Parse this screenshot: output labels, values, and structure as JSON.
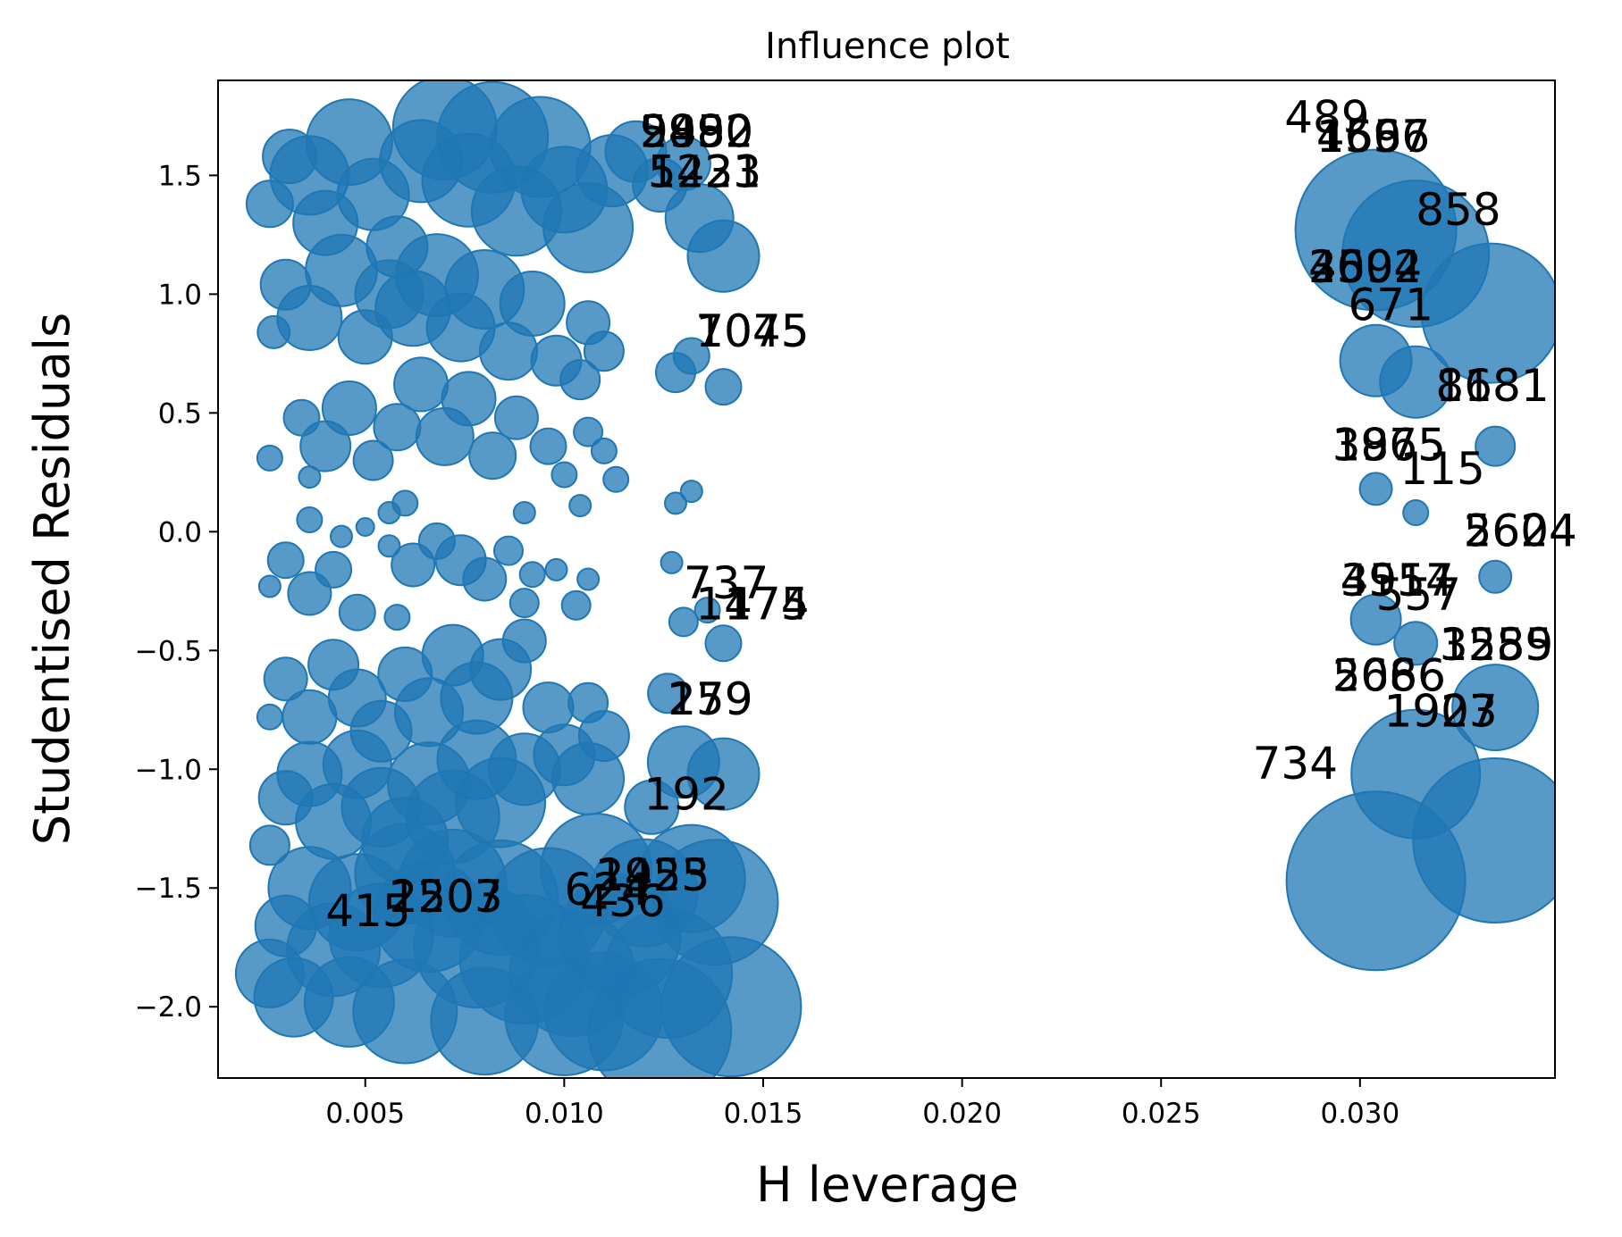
{
  "chart_data": {
    "type": "scatter",
    "title": "Influence plot",
    "xlabel": "H leverage",
    "ylabel": "Studentised Residuals",
    "xlim": [
      0.0013,
      0.0349
    ],
    "ylim": [
      -2.3,
      1.9
    ],
    "xticks": [
      0.005,
      0.01,
      0.015,
      0.02,
      0.025,
      0.03
    ],
    "xtick_labels": [
      "0.005",
      "0.010",
      "0.015",
      "0.020",
      "0.025",
      "0.030"
    ],
    "yticks": [
      1.5,
      1.0,
      0.5,
      0.0,
      -0.5,
      -1.0,
      -1.5,
      -2.0
    ],
    "ytick_labels": [
      "1.5",
      "1.0",
      "0.5",
      "0.0",
      "−0.5",
      "−1.0",
      "−1.5",
      "−2.0"
    ],
    "grid": false,
    "legend": "none",
    "marker_color": "#1f77b4",
    "marker_note": "marker area proportional to influence (Cook's distance)",
    "points": [
      {
        "x": 0.0026,
        "y": 1.38,
        "s": 26
      },
      {
        "x": 0.0031,
        "y": 1.58,
        "s": 30
      },
      {
        "x": 0.0036,
        "y": 1.5,
        "s": 44
      },
      {
        "x": 0.004,
        "y": 1.3,
        "s": 36
      },
      {
        "x": 0.0046,
        "y": 1.64,
        "s": 48
      },
      {
        "x": 0.0052,
        "y": 1.42,
        "s": 40
      },
      {
        "x": 0.0058,
        "y": 1.2,
        "s": 34
      },
      {
        "x": 0.0064,
        "y": 1.56,
        "s": 46
      },
      {
        "x": 0.007,
        "y": 1.7,
        "s": 58
      },
      {
        "x": 0.0076,
        "y": 1.48,
        "s": 52
      },
      {
        "x": 0.0082,
        "y": 1.66,
        "s": 62
      },
      {
        "x": 0.0088,
        "y": 1.35,
        "s": 50
      },
      {
        "x": 0.0094,
        "y": 1.62,
        "s": 56
      },
      {
        "x": 0.01,
        "y": 1.44,
        "s": 48
      },
      {
        "x": 0.0106,
        "y": 1.28,
        "s": 50
      },
      {
        "x": 0.0112,
        "y": 1.52,
        "s": 40
      },
      {
        "x": 0.0118,
        "y": 1.6,
        "s": 34
      },
      {
        "x": 0.0124,
        "y": 1.46,
        "s": 30
      },
      {
        "x": 0.013,
        "y": 1.55,
        "s": 30
      },
      {
        "x": 0.0134,
        "y": 1.32,
        "s": 38
      },
      {
        "x": 0.014,
        "y": 1.16,
        "s": 40
      },
      {
        "x": 0.003,
        "y": 1.04,
        "s": 28
      },
      {
        "x": 0.0036,
        "y": 0.9,
        "s": 36
      },
      {
        "x": 0.0044,
        "y": 1.1,
        "s": 40
      },
      {
        "x": 0.005,
        "y": 0.82,
        "s": 30
      },
      {
        "x": 0.0056,
        "y": 1.0,
        "s": 38
      },
      {
        "x": 0.0062,
        "y": 0.94,
        "s": 42
      },
      {
        "x": 0.0068,
        "y": 1.08,
        "s": 46
      },
      {
        "x": 0.0074,
        "y": 0.86,
        "s": 38
      },
      {
        "x": 0.008,
        "y": 1.02,
        "s": 44
      },
      {
        "x": 0.0086,
        "y": 0.76,
        "s": 32
      },
      {
        "x": 0.0092,
        "y": 0.96,
        "s": 36
      },
      {
        "x": 0.0098,
        "y": 0.72,
        "s": 28
      },
      {
        "x": 0.0106,
        "y": 0.88,
        "s": 24
      },
      {
        "x": 0.011,
        "y": 0.76,
        "s": 22
      },
      {
        "x": 0.0027,
        "y": 0.84,
        "s": 18
      },
      {
        "x": 0.0128,
        "y": 0.67,
        "s": 22
      },
      {
        "x": 0.0132,
        "y": 0.74,
        "s": 20
      },
      {
        "x": 0.014,
        "y": 0.61,
        "s": 20
      },
      {
        "x": 0.0034,
        "y": 0.48,
        "s": 20
      },
      {
        "x": 0.004,
        "y": 0.36,
        "s": 28
      },
      {
        "x": 0.0046,
        "y": 0.52,
        "s": 30
      },
      {
        "x": 0.0052,
        "y": 0.3,
        "s": 22
      },
      {
        "x": 0.0058,
        "y": 0.44,
        "s": 26
      },
      {
        "x": 0.0064,
        "y": 0.62,
        "s": 30
      },
      {
        "x": 0.007,
        "y": 0.4,
        "s": 32
      },
      {
        "x": 0.0076,
        "y": 0.56,
        "s": 30
      },
      {
        "x": 0.0082,
        "y": 0.32,
        "s": 26
      },
      {
        "x": 0.0088,
        "y": 0.48,
        "s": 24
      },
      {
        "x": 0.0096,
        "y": 0.36,
        "s": 20
      },
      {
        "x": 0.0104,
        "y": 0.64,
        "s": 22
      },
      {
        "x": 0.0106,
        "y": 0.42,
        "s": 16
      },
      {
        "x": 0.011,
        "y": 0.34,
        "s": 14
      },
      {
        "x": 0.01,
        "y": 0.24,
        "s": 14
      },
      {
        "x": 0.0113,
        "y": 0.22,
        "s": 14
      },
      {
        "x": 0.0026,
        "y": 0.31,
        "s": 14
      },
      {
        "x": 0.0036,
        "y": 0.23,
        "s": 12
      },
      {
        "x": 0.0128,
        "y": 0.12,
        "s": 12
      },
      {
        "x": 0.0132,
        "y": 0.17,
        "s": 12
      },
      {
        "x": 0.0104,
        "y": 0.11,
        "s": 12
      },
      {
        "x": 0.0056,
        "y": 0.08,
        "s": 12
      },
      {
        "x": 0.006,
        "y": 0.12,
        "s": 14
      },
      {
        "x": 0.009,
        "y": 0.08,
        "s": 12
      },
      {
        "x": 0.0036,
        "y": 0.05,
        "s": 14
      },
      {
        "x": 0.0044,
        "y": -0.02,
        "s": 12
      },
      {
        "x": 0.005,
        "y": 0.02,
        "s": 10
      },
      {
        "x": 0.0056,
        "y": -0.06,
        "s": 12
      },
      {
        "x": 0.0062,
        "y": -0.14,
        "s": 24
      },
      {
        "x": 0.0068,
        "y": -0.04,
        "s": 20
      },
      {
        "x": 0.0074,
        "y": -0.12,
        "s": 28
      },
      {
        "x": 0.008,
        "y": -0.2,
        "s": 24
      },
      {
        "x": 0.0086,
        "y": -0.08,
        "s": 16
      },
      {
        "x": 0.0092,
        "y": -0.18,
        "s": 14
      },
      {
        "x": 0.0098,
        "y": -0.16,
        "s": 12
      },
      {
        "x": 0.0106,
        "y": -0.2,
        "s": 12
      },
      {
        "x": 0.003,
        "y": -0.12,
        "s": 20
      },
      {
        "x": 0.0036,
        "y": -0.26,
        "s": 24
      },
      {
        "x": 0.0042,
        "y": -0.16,
        "s": 20
      },
      {
        "x": 0.0048,
        "y": -0.34,
        "s": 20
      },
      {
        "x": 0.0026,
        "y": -0.23,
        "s": 12
      },
      {
        "x": 0.0127,
        "y": -0.13,
        "s": 12
      },
      {
        "x": 0.0103,
        "y": -0.31,
        "s": 16
      },
      {
        "x": 0.009,
        "y": -0.3,
        "s": 16
      },
      {
        "x": 0.0058,
        "y": -0.36,
        "s": 14
      },
      {
        "x": 0.003,
        "y": -0.62,
        "s": 24
      },
      {
        "x": 0.0036,
        "y": -0.78,
        "s": 30
      },
      {
        "x": 0.0042,
        "y": -0.56,
        "s": 28
      },
      {
        "x": 0.0048,
        "y": -0.7,
        "s": 32
      },
      {
        "x": 0.0054,
        "y": -0.84,
        "s": 34
      },
      {
        "x": 0.006,
        "y": -0.6,
        "s": 30
      },
      {
        "x": 0.0066,
        "y": -0.76,
        "s": 38
      },
      {
        "x": 0.0072,
        "y": -0.52,
        "s": 34
      },
      {
        "x": 0.0078,
        "y": -0.7,
        "s": 40
      },
      {
        "x": 0.0084,
        "y": -0.58,
        "s": 34
      },
      {
        "x": 0.009,
        "y": -0.46,
        "s": 24
      },
      {
        "x": 0.0096,
        "y": -0.74,
        "s": 28
      },
      {
        "x": 0.0026,
        "y": -0.78,
        "s": 14
      },
      {
        "x": 0.0106,
        "y": -0.72,
        "s": 22
      },
      {
        "x": 0.011,
        "y": -0.86,
        "s": 28
      },
      {
        "x": 0.0126,
        "y": -0.68,
        "s": 22
      },
      {
        "x": 0.013,
        "y": -0.38,
        "s": 16
      },
      {
        "x": 0.0136,
        "y": -0.33,
        "s": 14
      },
      {
        "x": 0.014,
        "y": -0.47,
        "s": 20
      },
      {
        "x": 0.003,
        "y": -1.12,
        "s": 30
      },
      {
        "x": 0.0036,
        "y": -1.02,
        "s": 36
      },
      {
        "x": 0.0042,
        "y": -1.22,
        "s": 42
      },
      {
        "x": 0.0048,
        "y": -0.98,
        "s": 38
      },
      {
        "x": 0.0054,
        "y": -1.16,
        "s": 44
      },
      {
        "x": 0.006,
        "y": -1.3,
        "s": 48
      },
      {
        "x": 0.0066,
        "y": -1.06,
        "s": 46
      },
      {
        "x": 0.0072,
        "y": -1.2,
        "s": 52
      },
      {
        "x": 0.0078,
        "y": -0.96,
        "s": 44
      },
      {
        "x": 0.0084,
        "y": -1.14,
        "s": 50
      },
      {
        "x": 0.009,
        "y": -1.0,
        "s": 40
      },
      {
        "x": 0.01,
        "y": -0.94,
        "s": 34
      },
      {
        "x": 0.0106,
        "y": -1.04,
        "s": 40
      },
      {
        "x": 0.0122,
        "y": -1.16,
        "s": 30
      },
      {
        "x": 0.013,
        "y": -0.97,
        "s": 40
      },
      {
        "x": 0.014,
        "y": -1.02,
        "s": 40
      },
      {
        "x": 0.0026,
        "y": -1.32,
        "s": 22
      },
      {
        "x": 0.003,
        "y": -1.66,
        "s": 34
      },
      {
        "x": 0.0036,
        "y": -1.5,
        "s": 46
      },
      {
        "x": 0.0042,
        "y": -1.76,
        "s": 52
      },
      {
        "x": 0.0048,
        "y": -1.56,
        "s": 54
      },
      {
        "x": 0.0054,
        "y": -1.7,
        "s": 58
      },
      {
        "x": 0.006,
        "y": -1.44,
        "s": 56
      },
      {
        "x": 0.0066,
        "y": -1.62,
        "s": 62
      },
      {
        "x": 0.0072,
        "y": -1.48,
        "s": 60
      },
      {
        "x": 0.0078,
        "y": -1.74,
        "s": 70
      },
      {
        "x": 0.0084,
        "y": -1.54,
        "s": 64
      },
      {
        "x": 0.009,
        "y": -1.8,
        "s": 72
      },
      {
        "x": 0.0096,
        "y": -1.58,
        "s": 66
      },
      {
        "x": 0.0102,
        "y": -1.86,
        "s": 70
      },
      {
        "x": 0.0108,
        "y": -1.42,
        "s": 62
      },
      {
        "x": 0.0114,
        "y": -1.7,
        "s": 68
      },
      {
        "x": 0.012,
        "y": -1.52,
        "s": 60
      },
      {
        "x": 0.0126,
        "y": -1.86,
        "s": 72
      },
      {
        "x": 0.0132,
        "y": -1.46,
        "s": 60
      },
      {
        "x": 0.0138,
        "y": -1.56,
        "s": 70
      },
      {
        "x": 0.0142,
        "y": -2.0,
        "s": 78
      },
      {
        "x": 0.0124,
        "y": -2.1,
        "s": 80
      },
      {
        "x": 0.011,
        "y": -2.02,
        "s": 66
      },
      {
        "x": 0.0032,
        "y": -1.96,
        "s": 44
      },
      {
        "x": 0.0026,
        "y": -1.86,
        "s": 38
      },
      {
        "x": 0.0046,
        "y": -1.98,
        "s": 50
      },
      {
        "x": 0.006,
        "y": -2.02,
        "s": 58
      },
      {
        "x": 0.008,
        "y": -2.06,
        "s": 60
      },
      {
        "x": 0.01,
        "y": -2.04,
        "s": 66
      },
      {
        "x": 0.0304,
        "y": 1.27,
        "s": 90
      },
      {
        "x": 0.0314,
        "y": 1.17,
        "s": 82
      },
      {
        "x": 0.0333,
        "y": 0.92,
        "s": 78
      },
      {
        "x": 0.0304,
        "y": 0.72,
        "s": 40
      },
      {
        "x": 0.0314,
        "y": 0.63,
        "s": 40
      },
      {
        "x": 0.0334,
        "y": 0.36,
        "s": 22
      },
      {
        "x": 0.0304,
        "y": 0.18,
        "s": 18
      },
      {
        "x": 0.0314,
        "y": 0.08,
        "s": 14
      },
      {
        "x": 0.0334,
        "y": -0.19,
        "s": 18
      },
      {
        "x": 0.0304,
        "y": -0.37,
        "s": 28
      },
      {
        "x": 0.0314,
        "y": -0.47,
        "s": 24
      },
      {
        "x": 0.0334,
        "y": -0.74,
        "s": 48
      },
      {
        "x": 0.0314,
        "y": -1.02,
        "s": 72
      },
      {
        "x": 0.0304,
        "y": -1.47,
        "s": 100
      },
      {
        "x": 0.0334,
        "y": -1.3,
        "s": 92
      }
    ],
    "annotations": [
      {
        "text": "489",
        "x": 0.0281,
        "y": 1.68
      },
      {
        "text": "4597",
        "x": 0.0289,
        "y": 1.6
      },
      {
        "text": "1656",
        "x": 0.0289,
        "y": 1.6
      },
      {
        "text": "1667",
        "x": 0.0289,
        "y": 1.6
      },
      {
        "text": "858",
        "x": 0.0314,
        "y": 1.29
      },
      {
        "text": "2002",
        "x": 0.0287,
        "y": 1.05
      },
      {
        "text": "4592",
        "x": 0.0287,
        "y": 1.05
      },
      {
        "text": "3604",
        "x": 0.0287,
        "y": 1.05
      },
      {
        "text": "671",
        "x": 0.0297,
        "y": 0.89
      },
      {
        "text": "1181",
        "x": 0.0319,
        "y": 0.55
      },
      {
        "text": "868",
        "x": 0.0319,
        "y": 0.55
      },
      {
        "text": "1875",
        "x": 0.0293,
        "y": 0.3
      },
      {
        "text": "3965",
        "x": 0.0293,
        "y": 0.3
      },
      {
        "text": "115",
        "x": 0.031,
        "y": 0.2
      },
      {
        "text": "2624",
        "x": 0.0326,
        "y": -0.06
      },
      {
        "text": "5604",
        "x": 0.0326,
        "y": -0.06
      },
      {
        "text": "4914",
        "x": 0.0295,
        "y": -0.27
      },
      {
        "text": "3557",
        "x": 0.0295,
        "y": -0.27
      },
      {
        "text": "557",
        "x": 0.0304,
        "y": -0.33
      },
      {
        "text": "1559",
        "x": 0.032,
        "y": -0.54
      },
      {
        "text": "3285",
        "x": 0.032,
        "y": -0.54
      },
      {
        "text": "2086",
        "x": 0.0293,
        "y": -0.67
      },
      {
        "text": "5666",
        "x": 0.0293,
        "y": -0.67
      },
      {
        "text": "1927",
        "x": 0.0306,
        "y": -0.82
      },
      {
        "text": "1903",
        "x": 0.0306,
        "y": -0.82
      },
      {
        "text": "734",
        "x": 0.0273,
        "y": -1.04
      },
      {
        "text": "9950",
        "x": 0.0119,
        "y": 1.62
      },
      {
        "text": "2492",
        "x": 0.0119,
        "y": 1.62
      },
      {
        "text": "5882",
        "x": 0.0119,
        "y": 1.62
      },
      {
        "text": "5423",
        "x": 0.0121,
        "y": 1.45
      },
      {
        "text": "1231",
        "x": 0.0121,
        "y": 1.45
      },
      {
        "text": "1045",
        "x": 0.0133,
        "y": 0.78
      },
      {
        "text": "7075",
        "x": 0.0133,
        "y": 0.78
      },
      {
        "text": "737",
        "x": 0.013,
        "y": -0.28
      },
      {
        "text": "1475",
        "x": 0.0133,
        "y": -0.37
      },
      {
        "text": "1174",
        "x": 0.0133,
        "y": -0.37
      },
      {
        "text": "259",
        "x": 0.0126,
        "y": -0.77
      },
      {
        "text": "179",
        "x": 0.0126,
        "y": -0.77
      },
      {
        "text": "192",
        "x": 0.012,
        "y": -1.17
      },
      {
        "text": "2423",
        "x": 0.0108,
        "y": -1.51
      },
      {
        "text": "1955",
        "x": 0.0108,
        "y": -1.51
      },
      {
        "text": "624",
        "x": 0.01,
        "y": -1.57
      },
      {
        "text": "436",
        "x": 0.0104,
        "y": -1.62
      },
      {
        "text": "1507",
        "x": 0.0056,
        "y": -1.6
      },
      {
        "text": "2203",
        "x": 0.0056,
        "y": -1.6
      },
      {
        "text": "415",
        "x": 0.004,
        "y": -1.66
      }
    ]
  }
}
